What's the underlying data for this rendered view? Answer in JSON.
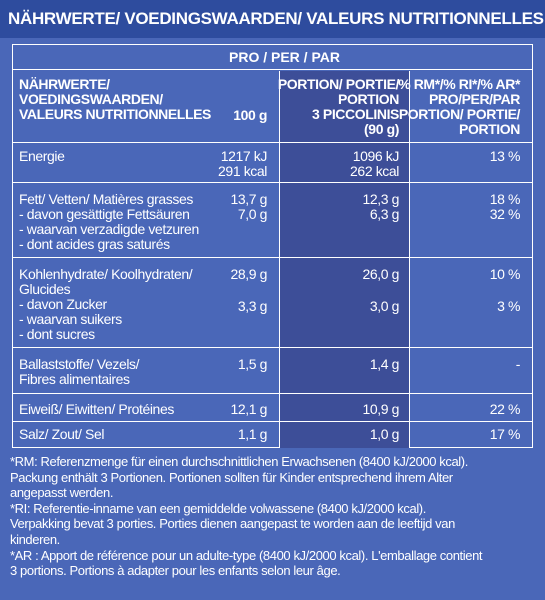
{
  "title": "NÄHRWERTE/ VOEDINGSWAARDEN/ VALEURS NUTRITIONNELLES",
  "per_label": "PRO / PER / PAR",
  "columns": {
    "label": [
      "NÄHRWERTE/",
      "VOEDINGSWAARDEN/",
      "VALEURS NUTRITIONNELLES"
    ],
    "per100": "100 g",
    "portion": [
      "PORTION/ PORTIE/",
      "PORTION",
      "3 PICCOLINIS",
      "(90 g)"
    ],
    "percent": [
      "% RM*/% RI*/% AR*",
      "PRO/PER/PAR",
      "PORTION/ PORTIE/",
      "PORTION"
    ]
  },
  "rows": {
    "energy": {
      "label": [
        "Energie"
      ],
      "per100": [
        "1217 kJ",
        "291 kcal"
      ],
      "portion": [
        "1096 kJ",
        "262 kcal"
      ],
      "percent": "13 %"
    },
    "fat": {
      "label": [
        "Fett/ Vetten/ Matières grasses",
        "- davon gesättigte Fettsäuren",
        "- waarvan verzadigde vetzuren",
        "- dont acides gras saturés"
      ],
      "per100": [
        "13,7 g",
        "7,0 g"
      ],
      "portion": [
        "12,3 g",
        "6,3 g"
      ],
      "percent": [
        "18 %",
        "32 %"
      ]
    },
    "carbs": {
      "label": [
        "Kohlenhydrate/ Koolhydraten/",
        "Glucides",
        "- davon Zucker",
        "- waarvan suikers",
        "- dont sucres"
      ],
      "per100": [
        "28,9 g",
        "3,3 g"
      ],
      "portion": [
        "26,0 g",
        "3,0 g"
      ],
      "percent": [
        "10 %",
        "3 %"
      ]
    },
    "fibre": {
      "label": [
        "Ballaststoffe/ Vezels/",
        "Fibres alimentaires"
      ],
      "per100": "1,5 g",
      "portion": "1,4 g",
      "percent": "-"
    },
    "protein": {
      "label": "Eiweiß/ Eiwitten/ Protéines",
      "per100": "12,1 g",
      "portion": "10,9 g",
      "percent": "22 %"
    },
    "salt": {
      "label": "Salz/ Zout/ Sel",
      "per100": "1,1 g",
      "portion": "1,0 g",
      "percent": "17 %"
    }
  },
  "footnotes": [
    "*RM: Referenzmenge für einen durchschnittlichen Erwachsenen (8400 kJ/2000 kcal).",
    "Packung enthält 3 Portionen. Portionen sollten für Kinder entsprechend ihrem Alter",
    "angepasst werden.",
    "*RI: Referentie-inname van een gemiddelde volwassene (8400 kJ/2000 kcal).",
    "Verpakking bevat 3 porties. Porties dienen aangepast te worden aan de leeftijd van",
    "kinderen.",
    "*AR : Apport de référence pour un adulte-type (8400 kJ/2000 kcal). L'emballage contient",
    "3 portions. Portions à adapter pour les enfants selon leur âge."
  ]
}
